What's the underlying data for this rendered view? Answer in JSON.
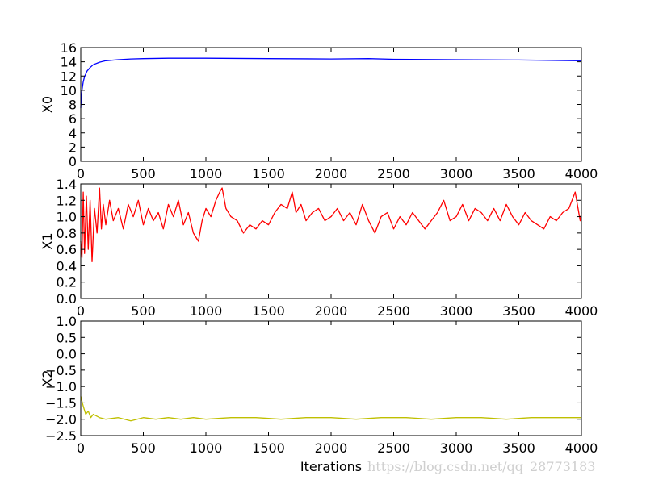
{
  "watermark": "https://blog.csdn.net/qq_28773183",
  "chart_data": [
    {
      "type": "line",
      "title": "",
      "xlabel": "",
      "ylabel": "X0",
      "xlim": [
        0,
        4000
      ],
      "ylim": [
        0,
        16
      ],
      "xticks": [
        0,
        500,
        1000,
        1500,
        2000,
        2500,
        3000,
        3500,
        4000
      ],
      "yticks": [
        "0",
        "2",
        "4",
        "6",
        "8",
        "10",
        "12",
        "14",
        "16"
      ],
      "ytick_values": [
        0,
        2,
        4,
        6,
        8,
        10,
        12,
        14,
        16
      ],
      "series": [
        {
          "color": "#0000ff",
          "x": [
            0,
            5,
            10,
            20,
            30,
            50,
            75,
            100,
            150,
            200,
            300,
            400,
            500,
            700,
            1000,
            1500,
            2000,
            2300,
            2500,
            3000,
            3500,
            4000
          ],
          "values": [
            7.5,
            9.0,
            10.0,
            11.2,
            11.9,
            12.7,
            13.2,
            13.6,
            13.95,
            14.15,
            14.3,
            14.4,
            14.45,
            14.5,
            14.5,
            14.45,
            14.4,
            14.45,
            14.35,
            14.3,
            14.25,
            14.15
          ]
        }
      ]
    },
    {
      "type": "line",
      "title": "",
      "xlabel": "",
      "ylabel": "X1",
      "xlim": [
        0,
        4000
      ],
      "ylim": [
        0,
        1.4
      ],
      "xticks": [
        0,
        500,
        1000,
        1500,
        2000,
        2500,
        3000,
        3500,
        4000
      ],
      "yticks": [
        "0.0",
        "0.2",
        "0.4",
        "0.6",
        "0.8",
        "1.0",
        "1.2",
        "1.4"
      ],
      "ytick_values": [
        0,
        0.2,
        0.4,
        0.6,
        0.8,
        1.0,
        1.2,
        1.4
      ],
      "series": [
        {
          "color": "#ff0000",
          "x": [
            0,
            10,
            20,
            30,
            45,
            60,
            75,
            90,
            110,
            130,
            150,
            165,
            180,
            200,
            230,
            260,
            300,
            340,
            380,
            420,
            460,
            500,
            540,
            580,
            620,
            660,
            700,
            740,
            780,
            820,
            860,
            900,
            940,
            970,
            1000,
            1040,
            1080,
            1110,
            1130,
            1160,
            1200,
            1250,
            1300,
            1350,
            1400,
            1450,
            1500,
            1550,
            1600,
            1650,
            1690,
            1720,
            1760,
            1800,
            1850,
            1900,
            1950,
            2000,
            2050,
            2100,
            2150,
            2200,
            2250,
            2300,
            2350,
            2400,
            2450,
            2500,
            2550,
            2600,
            2650,
            2700,
            2750,
            2800,
            2850,
            2900,
            2950,
            3000,
            3050,
            3100,
            3150,
            3200,
            3250,
            3300,
            3350,
            3400,
            3450,
            3500,
            3550,
            3600,
            3650,
            3700,
            3750,
            3800,
            3850,
            3900,
            3950,
            3990,
            4000
          ],
          "values": [
            0.7,
            0.5,
            1.3,
            0.55,
            1.25,
            0.6,
            1.2,
            0.45,
            1.1,
            0.8,
            1.35,
            0.85,
            1.15,
            0.9,
            1.2,
            0.95,
            1.1,
            0.85,
            1.15,
            1.0,
            1.2,
            0.9,
            1.1,
            0.95,
            1.05,
            0.85,
            1.15,
            1.0,
            1.2,
            0.9,
            1.05,
            0.8,
            0.7,
            0.95,
            1.1,
            1.0,
            1.2,
            1.3,
            1.35,
            1.1,
            1.0,
            0.95,
            0.8,
            0.9,
            0.85,
            0.95,
            0.9,
            1.05,
            1.15,
            1.1,
            1.3,
            1.05,
            1.15,
            0.95,
            1.05,
            1.1,
            0.95,
            1.0,
            1.1,
            0.95,
            1.05,
            0.9,
            1.15,
            0.95,
            0.8,
            1.0,
            1.05,
            0.85,
            1.0,
            0.9,
            1.05,
            0.95,
            0.85,
            0.95,
            1.05,
            1.2,
            0.95,
            1.0,
            1.15,
            0.95,
            1.1,
            1.05,
            0.95,
            1.1,
            0.95,
            1.15,
            1.0,
            0.9,
            1.05,
            0.95,
            0.9,
            0.85,
            1.0,
            0.95,
            1.05,
            1.1,
            1.3,
            0.95,
            1.05
          ]
        }
      ]
    },
    {
      "type": "line",
      "title": "",
      "xlabel": "Iterations",
      "ylabel": "X2",
      "xlim": [
        0,
        4000
      ],
      "ylim": [
        -2.5,
        1.0
      ],
      "xticks": [
        0,
        500,
        1000,
        1500,
        2000,
        2500,
        3000,
        3500,
        4000
      ],
      "yticks": [
        "−2.5",
        "−2.0",
        "−1.5",
        "−1.0",
        "−0.5",
        "0.0",
        "0.5",
        "1.0"
      ],
      "ytick_values": [
        -2.5,
        -2.0,
        -1.5,
        -1.0,
        -0.5,
        0.0,
        0.5,
        1.0
      ],
      "series": [
        {
          "color": "#bfbf00",
          "x": [
            0,
            20,
            40,
            60,
            80,
            100,
            150,
            200,
            300,
            400,
            500,
            600,
            700,
            800,
            900,
            1000,
            1200,
            1400,
            1600,
            1800,
            2000,
            2200,
            2400,
            2600,
            2800,
            3000,
            3200,
            3400,
            3600,
            3800,
            4000
          ],
          "values": [
            -1.3,
            -1.6,
            -1.85,
            -1.75,
            -1.95,
            -1.85,
            -1.95,
            -2.0,
            -1.95,
            -2.05,
            -1.95,
            -2.0,
            -1.95,
            -2.0,
            -1.95,
            -2.0,
            -1.95,
            -1.95,
            -2.0,
            -1.95,
            -1.95,
            -2.0,
            -1.95,
            -1.95,
            -2.0,
            -1.95,
            -1.95,
            -2.0,
            -1.95,
            -1.95,
            -1.95
          ]
        }
      ]
    }
  ]
}
